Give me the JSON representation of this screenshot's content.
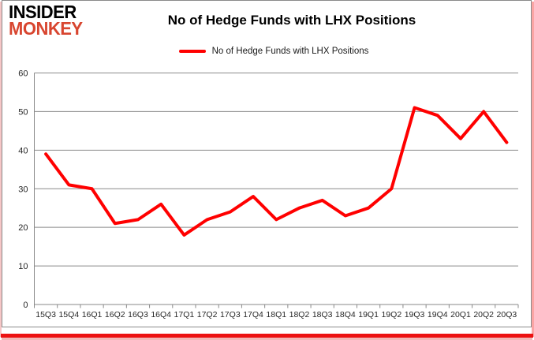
{
  "brand": {
    "line1": "INSIDER",
    "line2": "MONKEY"
  },
  "header": {
    "title": "No of Hedge Funds with LHX Positions"
  },
  "legend": {
    "label": "No of Hedge Funds with LHX Positions",
    "color": "#ff0000"
  },
  "colors": {
    "line": "#ff0000",
    "grid": "#8a8a8a",
    "axis_text": "#262626",
    "logo_red": "#d8452f",
    "border_red": "#ec1111",
    "border_gray": "#8a8a8a"
  },
  "chart_data": {
    "type": "line",
    "title": "No of Hedge Funds with LHX Positions",
    "categories": [
      "15Q3",
      "15Q4",
      "16Q1",
      "16Q2",
      "16Q3",
      "16Q4",
      "17Q1",
      "17Q2",
      "17Q3",
      "17Q4",
      "18Q1",
      "18Q2",
      "18Q3",
      "18Q4",
      "19Q1",
      "19Q2",
      "19Q3",
      "19Q4",
      "20Q1",
      "20Q2",
      "20Q3"
    ],
    "series": [
      {
        "name": "No of Hedge Funds with LHX Positions",
        "color": "#ff0000",
        "values": [
          39,
          31,
          30,
          21,
          22,
          26,
          18,
          22,
          24,
          28,
          22,
          25,
          27,
          23,
          25,
          30,
          51,
          49,
          43,
          50,
          42
        ]
      }
    ],
    "xlabel": "",
    "ylabel": "",
    "ylim": [
      0,
      60
    ],
    "yticks": [
      0,
      10,
      20,
      30,
      40,
      50,
      60
    ],
    "grid": true,
    "legend_position": "top"
  }
}
